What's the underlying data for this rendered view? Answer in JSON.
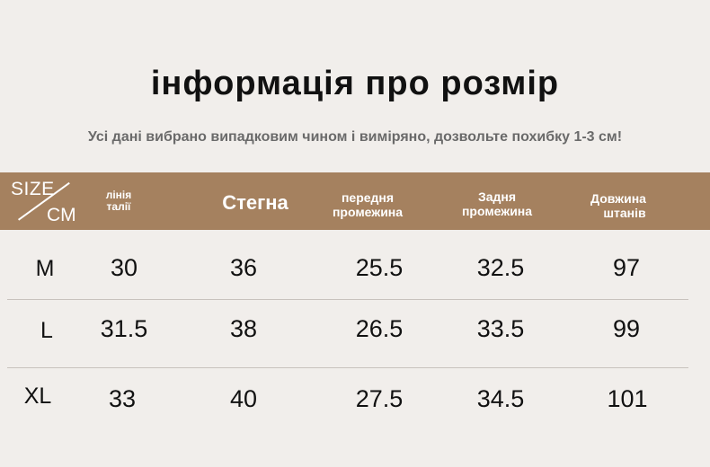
{
  "title": "інформація про розмір",
  "subtitle": "Усі дані вибрано випадковим чином і виміряно, дозвольте похибку 1-3 см!",
  "header": {
    "corner_top": "SIZE",
    "corner_bottom": "CM",
    "col_waist": [
      "лінія",
      "талії"
    ],
    "col_hips": "Стегна",
    "col_front_rise": [
      "передня",
      "промежина"
    ],
    "col_back_rise": [
      "Задня",
      "промежина"
    ],
    "col_length": [
      "Довжина",
      "штанів"
    ]
  },
  "rows": [
    {
      "size": "M",
      "waist": "30",
      "hips": "36",
      "front_rise": "25.5",
      "back_rise": "32.5",
      "length": "97"
    },
    {
      "size": "L",
      "waist": "31.5",
      "hips": "38",
      "front_rise": "26.5",
      "back_rise": "33.5",
      "length": "99"
    },
    {
      "size": "XL",
      "waist": "33",
      "hips": "40",
      "front_rise": "27.5",
      "back_rise": "34.5",
      "length": "101"
    }
  ],
  "colors": {
    "background": "#f1eeeb",
    "header_band": "#a5815f",
    "title": "#111111",
    "subtitle": "#6a6a6a"
  }
}
